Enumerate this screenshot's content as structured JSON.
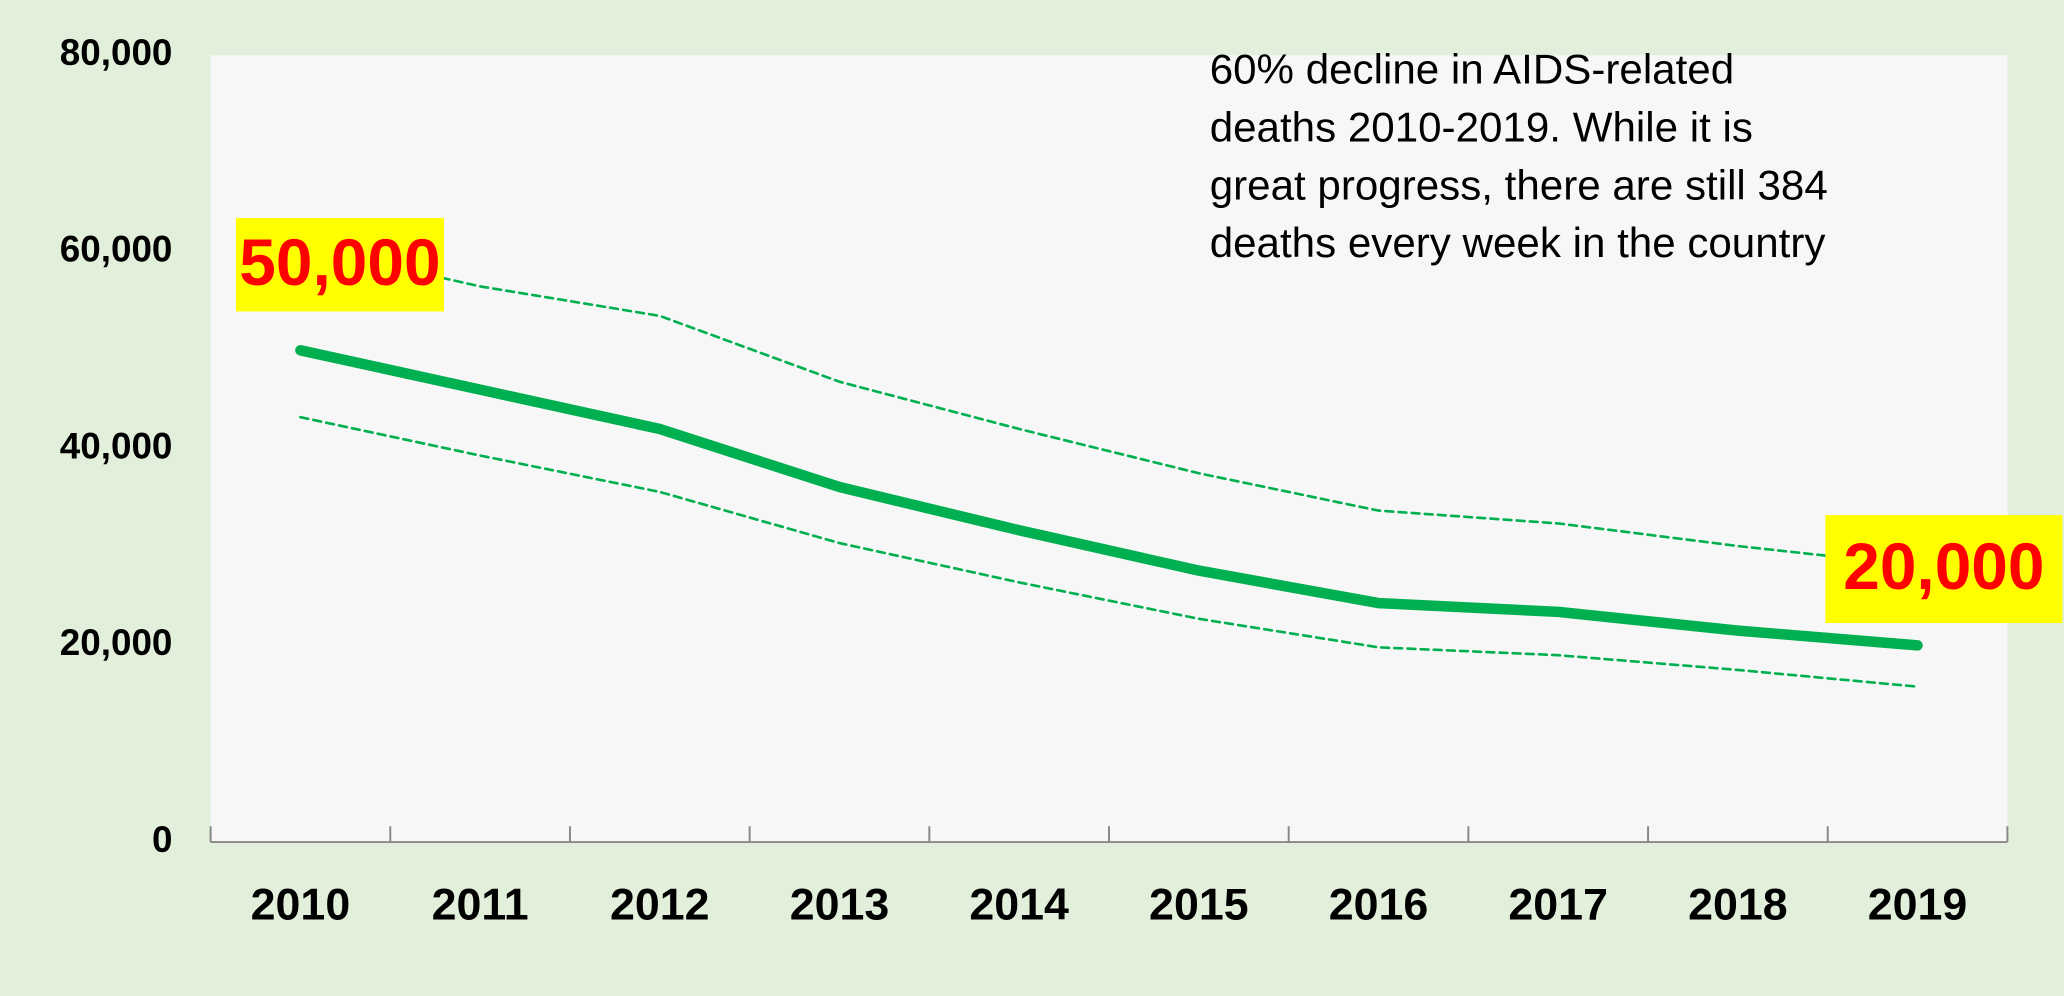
{
  "chart_data": {
    "type": "line",
    "annotation": [
      "60% decline in AIDS-related",
      "deaths 2010-2019. While it is",
      "great progress, there are still 384",
      "deaths every week in the country"
    ],
    "categories": [
      "2010",
      "2011",
      "2012",
      "2013",
      "2014",
      "2015",
      "2016",
      "2017",
      "2018",
      "2019"
    ],
    "series": [
      {
        "color": "#00b050",
        "style": "solid",
        "values": [
          50000,
          46000,
          42000,
          36100,
          31700,
          27600,
          24300,
          23400,
          21500,
          20000
        ],
        "value_labels": [
          "50,000",
          null,
          null,
          null,
          null,
          null,
          null,
          null,
          null,
          "20,000"
        ]
      },
      {
        "color": "#00b050",
        "style": "dashed",
        "values": [
          60600,
          56500,
          53500,
          46800,
          42000,
          37500,
          33700,
          32400,
          30100,
          28100
        ]
      },
      {
        "color": "#00b050",
        "style": "dashed",
        "values": [
          43200,
          39300,
          35600,
          30400,
          26400,
          22700,
          19800,
          19000,
          17500,
          15800
        ]
      }
    ],
    "ylim": [
      0,
      80000
    ],
    "yticks": [
      {
        "value": 0,
        "label": "0"
      },
      {
        "value": 20000,
        "label": "20,000"
      },
      {
        "value": 40000,
        "label": "40,000"
      },
      {
        "value": 60000,
        "label": "60,000"
      },
      {
        "value": 80000,
        "label": "80,000"
      }
    ],
    "grid": false,
    "plot_background": "#f7f7f7",
    "background": "#e2efda",
    "value_label_background": "#ffff00",
    "value_label_color": "#ff0000"
  }
}
